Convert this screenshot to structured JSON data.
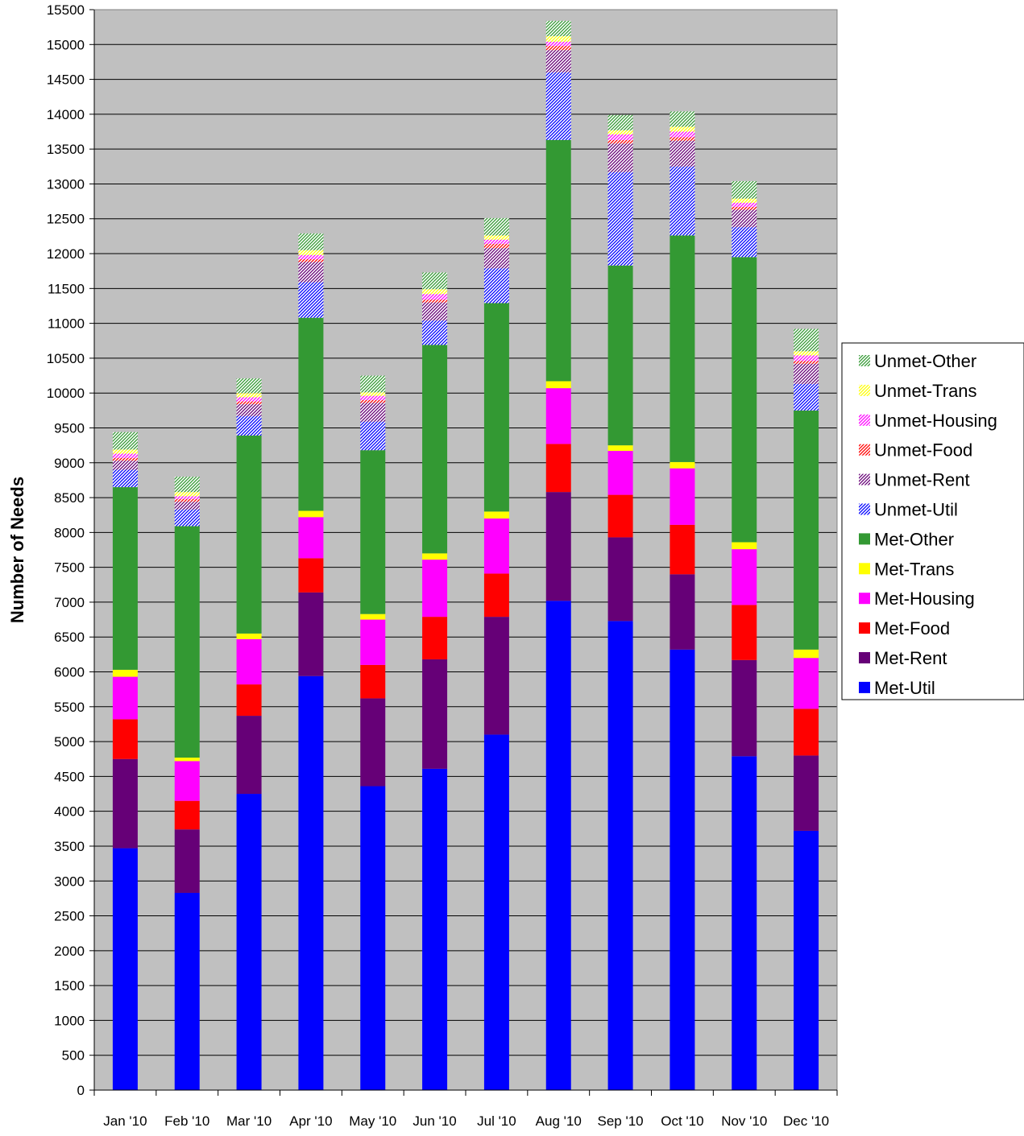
{
  "chart_data": {
    "type": "bar",
    "stacked": true,
    "title": "",
    "xlabel": "",
    "ylabel": "Number of Needs",
    "ylim": [
      0,
      15500
    ],
    "ytick_step": 500,
    "grid": true,
    "legend_position": "right",
    "categories": [
      "Jan '10",
      "Feb '10",
      "Mar '10",
      "Apr '10",
      "May '10",
      "Jun '10",
      "Jul '10",
      "Aug '10",
      "Sep '10",
      "Oct '10",
      "Nov '10",
      "Dec '10"
    ],
    "series": [
      {
        "name": "Met-Util",
        "color": "#0000ff",
        "pattern": "solid",
        "values": [
          3470,
          2830,
          4250,
          5940,
          4360,
          4610,
          5100,
          7020,
          6730,
          6320,
          4790,
          3720
        ]
      },
      {
        "name": "Met-Rent",
        "color": "#660077",
        "pattern": "solid",
        "values": [
          1280,
          910,
          1120,
          1200,
          1260,
          1570,
          1690,
          1560,
          1200,
          1080,
          1380,
          1080
        ]
      },
      {
        "name": "Met-Food",
        "color": "#ff0000",
        "pattern": "solid",
        "values": [
          570,
          410,
          450,
          490,
          480,
          610,
          620,
          690,
          610,
          710,
          790,
          670
        ]
      },
      {
        "name": "Met-Housing",
        "color": "#ff00ff",
        "pattern": "solid",
        "values": [
          610,
          570,
          650,
          590,
          650,
          820,
          790,
          800,
          630,
          810,
          800,
          730
        ]
      },
      {
        "name": "Met-Trans",
        "color": "#ffff00",
        "pattern": "solid",
        "values": [
          100,
          50,
          80,
          90,
          80,
          90,
          100,
          100,
          80,
          90,
          100,
          120
        ]
      },
      {
        "name": "Met-Other",
        "color": "#339933",
        "pattern": "solid",
        "values": [
          2620,
          3320,
          2840,
          2770,
          2350,
          2990,
          2990,
          3460,
          2580,
          3250,
          4090,
          3430
        ]
      },
      {
        "name": "Unmet-Util",
        "color": "#0000ff",
        "pattern": "hatch",
        "values": [
          250,
          240,
          280,
          510,
          410,
          350,
          500,
          970,
          1340,
          990,
          430,
          380
        ]
      },
      {
        "name": "Unmet-Rent",
        "color": "#660077",
        "pattern": "hatch",
        "values": [
          130,
          110,
          170,
          290,
          270,
          260,
          290,
          320,
          410,
          370,
          250,
          290
        ]
      },
      {
        "name": "Unmet-Food",
        "color": "#ff0000",
        "pattern": "hatch",
        "values": [
          40,
          40,
          40,
          40,
          40,
          40,
          60,
          60,
          50,
          50,
          40,
          40
        ]
      },
      {
        "name": "Unmet-Housing",
        "color": "#ff00ff",
        "pattern": "hatch",
        "values": [
          60,
          40,
          60,
          60,
          60,
          80,
          60,
          60,
          80,
          80,
          60,
          80
        ]
      },
      {
        "name": "Unmet-Trans",
        "color": "#ffff00",
        "pattern": "hatch",
        "values": [
          60,
          60,
          60,
          70,
          50,
          70,
          60,
          80,
          60,
          70,
          60,
          60
        ]
      },
      {
        "name": "Unmet-Other",
        "color": "#339933",
        "pattern": "hatch",
        "values": [
          250,
          220,
          210,
          240,
          240,
          240,
          250,
          220,
          220,
          220,
          250,
          320
        ]
      }
    ]
  }
}
